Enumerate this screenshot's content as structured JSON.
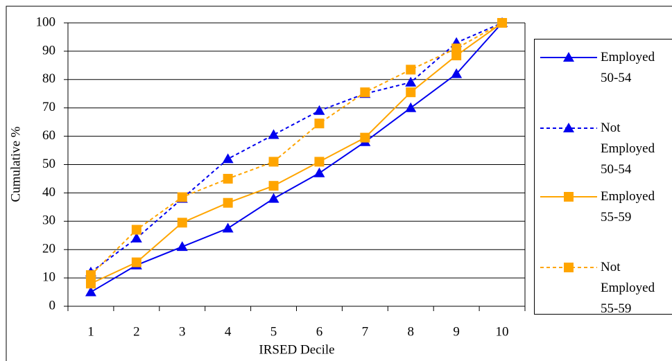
{
  "chart_data": {
    "type": "line",
    "y_label": "Cumulative %",
    "x_label": "IRSED Decile",
    "categories": [
      "1",
      "2",
      "3",
      "4",
      "5",
      "6",
      "7",
      "8",
      "9",
      "10"
    ],
    "ylim": [
      0,
      100
    ],
    "yticks": [
      0,
      10,
      20,
      30,
      40,
      50,
      60,
      70,
      80,
      90,
      100
    ],
    "grid": true,
    "series": [
      {
        "name": "Employed 50-54",
        "color": "#0000ee",
        "dash": false,
        "marker": "triangle",
        "values": [
          5,
          14.5,
          21,
          27.5,
          38,
          47,
          58,
          70,
          82,
          100
        ]
      },
      {
        "name": "Not Employed 50-54",
        "color": "#0000ee",
        "dash": true,
        "marker": "triangle",
        "values": [
          12,
          24,
          38,
          52,
          60.5,
          69,
          75,
          79,
          93,
          100
        ]
      },
      {
        "name": "Employed 55-59",
        "color": "#ffa500",
        "dash": false,
        "marker": "square",
        "values": [
          8,
          15.5,
          29.5,
          36.5,
          42.5,
          51,
          59.5,
          75.5,
          88.5,
          100
        ]
      },
      {
        "name": "Not Employed 55-59",
        "color": "#ffa500",
        "dash": true,
        "marker": "square",
        "values": [
          11,
          27,
          38.5,
          45,
          51,
          64.5,
          75.5,
          83.5,
          91,
          100
        ]
      }
    ]
  }
}
